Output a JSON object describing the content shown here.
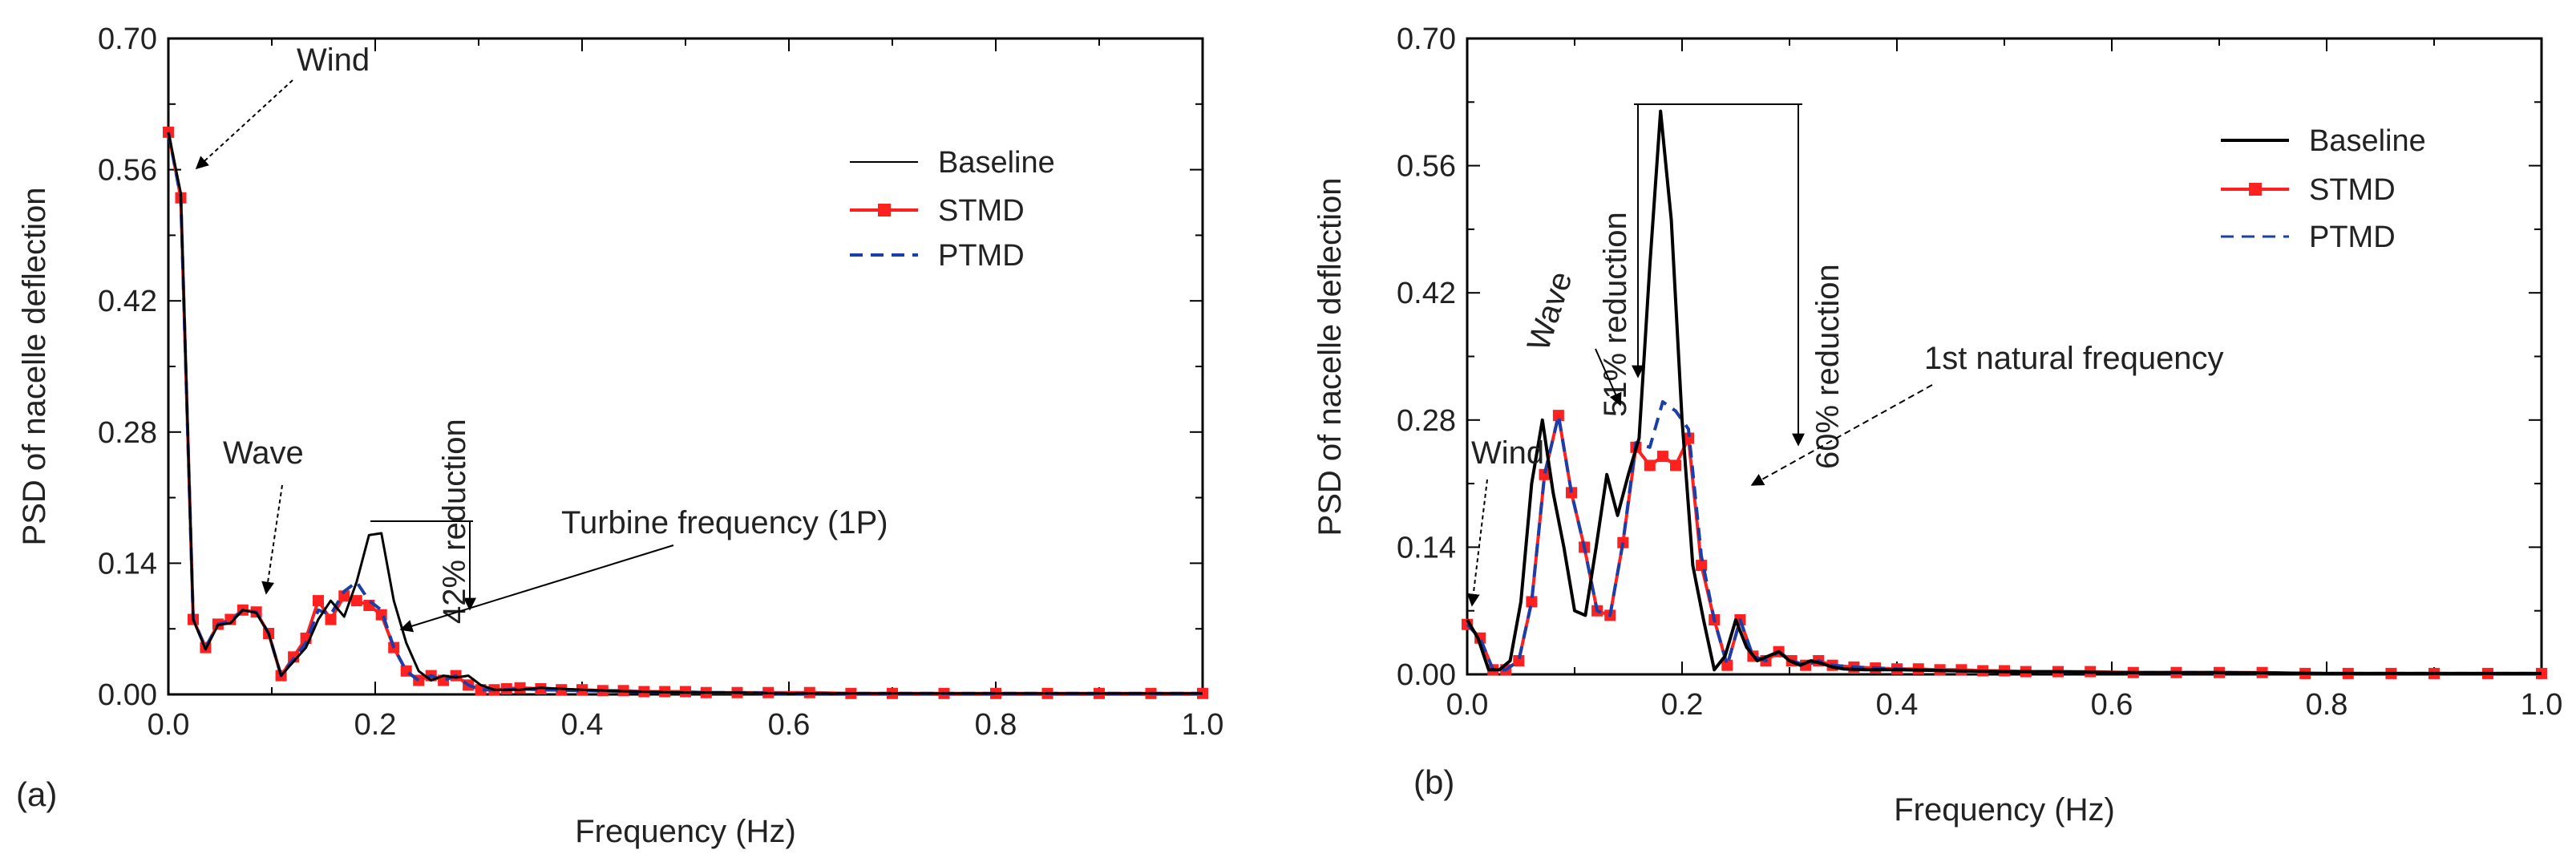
{
  "chart_data": [
    {
      "type": "line",
      "panel_label": "(a)",
      "xlabel": "Frequency (Hz)",
      "ylabel": "PSD of nacelle deflection",
      "xlim": [
        0,
        1
      ],
      "ylim": [
        0,
        0.7
      ],
      "xticks": [
        "0.0",
        "0.2",
        "0.4",
        "0.6",
        "0.8",
        "1.0"
      ],
      "yticks": [
        "0.00",
        "0.14",
        "0.28",
        "0.42",
        "0.56",
        "0.70"
      ],
      "legend_position": "top-right",
      "series": [
        {
          "name": "Baseline",
          "color": "#000000",
          "style": "solid",
          "x": [
            0.0,
            0.012,
            0.024,
            0.036,
            0.048,
            0.06,
            0.072,
            0.085,
            0.097,
            0.109,
            0.121,
            0.133,
            0.145,
            0.157,
            0.17,
            0.182,
            0.194,
            0.206,
            0.218,
            0.23,
            0.242,
            0.254,
            0.266,
            0.278,
            0.29,
            0.302,
            0.315,
            0.327,
            0.34,
            0.36,
            0.4,
            0.45,
            0.5,
            0.55,
            0.6,
            0.65,
            0.7,
            0.75,
            0.8,
            0.85,
            0.9,
            0.95,
            1.0
          ],
          "y": [
            0.6,
            0.535,
            0.08,
            0.048,
            0.074,
            0.076,
            0.09,
            0.087,
            0.065,
            0.02,
            0.035,
            0.05,
            0.08,
            0.1,
            0.083,
            0.12,
            0.17,
            0.172,
            0.1,
            0.055,
            0.025,
            0.015,
            0.02,
            0.018,
            0.02,
            0.01,
            0.005,
            0.005,
            0.005,
            0.007,
            0.005,
            0.003,
            0.002,
            0.002,
            0.001,
            0.001,
            0.001,
            0.001,
            0.001,
            0.001,
            0.001,
            0.001,
            0.001
          ]
        },
        {
          "name": "STMD",
          "color": "#ff2020",
          "style": "solid-square",
          "x": [
            0.0,
            0.012,
            0.024,
            0.036,
            0.048,
            0.06,
            0.072,
            0.085,
            0.097,
            0.109,
            0.121,
            0.133,
            0.145,
            0.157,
            0.17,
            0.182,
            0.194,
            0.206,
            0.218,
            0.23,
            0.242,
            0.254,
            0.266,
            0.278,
            0.29,
            0.302,
            0.315,
            0.327,
            0.34,
            0.36,
            0.38,
            0.4,
            0.42,
            0.44,
            0.46,
            0.48,
            0.5,
            0.52,
            0.55,
            0.58,
            0.62,
            0.66,
            0.7,
            0.75,
            0.8,
            0.85,
            0.9,
            0.95,
            1.0
          ],
          "y": [
            0.6,
            0.53,
            0.08,
            0.05,
            0.075,
            0.08,
            0.09,
            0.088,
            0.065,
            0.02,
            0.04,
            0.06,
            0.1,
            0.08,
            0.105,
            0.1,
            0.095,
            0.085,
            0.05,
            0.025,
            0.015,
            0.02,
            0.015,
            0.02,
            0.01,
            0.005,
            0.005,
            0.006,
            0.007,
            0.006,
            0.005,
            0.005,
            0.004,
            0.004,
            0.003,
            0.003,
            0.003,
            0.002,
            0.002,
            0.002,
            0.002,
            0.001,
            0.001,
            0.001,
            0.001,
            0.001,
            0.001,
            0.001,
            0.001
          ]
        },
        {
          "name": "PTMD",
          "color": "#1a3fa8",
          "style": "dashed",
          "x": [
            0.0,
            0.012,
            0.024,
            0.036,
            0.048,
            0.06,
            0.072,
            0.085,
            0.097,
            0.109,
            0.121,
            0.133,
            0.145,
            0.157,
            0.17,
            0.182,
            0.194,
            0.206,
            0.218,
            0.23,
            0.242,
            0.254,
            0.266,
            0.278,
            0.29,
            0.302,
            0.315,
            0.327,
            0.34,
            0.36,
            0.4,
            0.45,
            0.5,
            0.55,
            0.6,
            0.7,
            0.8,
            0.9,
            1.0
          ],
          "y": [
            0.6,
            0.53,
            0.08,
            0.05,
            0.075,
            0.078,
            0.09,
            0.088,
            0.065,
            0.02,
            0.038,
            0.055,
            0.09,
            0.085,
            0.11,
            0.12,
            0.1,
            0.09,
            0.05,
            0.025,
            0.015,
            0.02,
            0.015,
            0.02,
            0.01,
            0.005,
            0.005,
            0.005,
            0.006,
            0.005,
            0.004,
            0.003,
            0.002,
            0.002,
            0.001,
            0.001,
            0.001,
            0.001,
            0.001
          ]
        }
      ],
      "annotations": {
        "wind": "Wind",
        "wave": "Wave",
        "reduction": "42% reduction",
        "turbine": "Turbine frequency (1P)"
      }
    },
    {
      "type": "line",
      "panel_label": "(b)",
      "xlabel": "Frequency (Hz)",
      "ylabel": "PSD of nacelle deflection",
      "xlim": [
        0,
        1
      ],
      "ylim": [
        0,
        0.7
      ],
      "xticks": [
        "0.0",
        "0.2",
        "0.4",
        "0.6",
        "0.8",
        "1.0"
      ],
      "yticks": [
        "0.00",
        "0.14",
        "0.28",
        "0.42",
        "0.56",
        "0.70"
      ],
      "legend_position": "top-right",
      "series": [
        {
          "name": "Baseline",
          "color": "#000000",
          "style": "solid",
          "x": [
            0.0,
            0.01,
            0.02,
            0.03,
            0.04,
            0.05,
            0.06,
            0.07,
            0.08,
            0.09,
            0.1,
            0.11,
            0.12,
            0.13,
            0.14,
            0.15,
            0.16,
            0.17,
            0.18,
            0.19,
            0.2,
            0.21,
            0.22,
            0.23,
            0.24,
            0.25,
            0.26,
            0.27,
            0.28,
            0.29,
            0.3,
            0.31,
            0.32,
            0.33,
            0.34,
            0.35,
            0.37,
            0.4,
            0.45,
            0.5,
            0.55,
            0.6,
            0.7,
            0.8,
            0.9,
            1.0
          ],
          "y": [
            0.06,
            0.04,
            0.005,
            0.005,
            0.015,
            0.08,
            0.21,
            0.28,
            0.2,
            0.14,
            0.07,
            0.065,
            0.14,
            0.22,
            0.175,
            0.22,
            0.26,
            0.45,
            0.62,
            0.5,
            0.28,
            0.12,
            0.06,
            0.005,
            0.02,
            0.06,
            0.03,
            0.015,
            0.02,
            0.025,
            0.015,
            0.01,
            0.015,
            0.012,
            0.008,
            0.006,
            0.005,
            0.005,
            0.004,
            0.003,
            0.003,
            0.002,
            0.002,
            0.001,
            0.001,
            0.001
          ]
        },
        {
          "name": "STMD",
          "color": "#ff2020",
          "style": "solid-square",
          "x": [
            0.0,
            0.012,
            0.024,
            0.036,
            0.048,
            0.06,
            0.072,
            0.085,
            0.097,
            0.109,
            0.121,
            0.133,
            0.145,
            0.157,
            0.17,
            0.182,
            0.194,
            0.206,
            0.218,
            0.23,
            0.242,
            0.254,
            0.266,
            0.278,
            0.29,
            0.302,
            0.315,
            0.327,
            0.34,
            0.36,
            0.38,
            0.4,
            0.42,
            0.44,
            0.46,
            0.48,
            0.5,
            0.52,
            0.55,
            0.58,
            0.62,
            0.66,
            0.7,
            0.74,
            0.78,
            0.82,
            0.86,
            0.9,
            0.95,
            1.0
          ],
          "y": [
            0.055,
            0.04,
            0.005,
            0.005,
            0.015,
            0.08,
            0.22,
            0.285,
            0.2,
            0.14,
            0.07,
            0.065,
            0.145,
            0.25,
            0.23,
            0.24,
            0.23,
            0.26,
            0.12,
            0.06,
            0.01,
            0.06,
            0.02,
            0.015,
            0.025,
            0.015,
            0.01,
            0.015,
            0.01,
            0.008,
            0.007,
            0.006,
            0.006,
            0.005,
            0.005,
            0.004,
            0.004,
            0.003,
            0.003,
            0.003,
            0.002,
            0.002,
            0.002,
            0.002,
            0.001,
            0.001,
            0.001,
            0.001,
            0.001,
            0.001
          ]
        },
        {
          "name": "PTMD",
          "color": "#1a3fa8",
          "style": "dashed",
          "x": [
            0.0,
            0.012,
            0.024,
            0.036,
            0.048,
            0.06,
            0.072,
            0.085,
            0.097,
            0.109,
            0.121,
            0.133,
            0.145,
            0.157,
            0.17,
            0.182,
            0.194,
            0.206,
            0.218,
            0.23,
            0.242,
            0.254,
            0.266,
            0.278,
            0.29,
            0.302,
            0.315,
            0.327,
            0.34,
            0.36,
            0.4,
            0.45,
            0.5,
            0.6,
            0.7,
            0.8,
            0.9,
            1.0
          ],
          "y": [
            0.055,
            0.04,
            0.005,
            0.005,
            0.015,
            0.08,
            0.22,
            0.285,
            0.2,
            0.14,
            0.07,
            0.065,
            0.145,
            0.255,
            0.25,
            0.3,
            0.29,
            0.27,
            0.13,
            0.06,
            0.01,
            0.06,
            0.02,
            0.015,
            0.025,
            0.015,
            0.01,
            0.015,
            0.01,
            0.008,
            0.006,
            0.004,
            0.003,
            0.002,
            0.002,
            0.001,
            0.001,
            0.001
          ]
        }
      ],
      "annotations": {
        "wind": "Wind",
        "wave": "Wave",
        "reduction51": "51% reduction",
        "reduction60": "60% reduction",
        "natural": "1st natural frequency"
      }
    }
  ]
}
